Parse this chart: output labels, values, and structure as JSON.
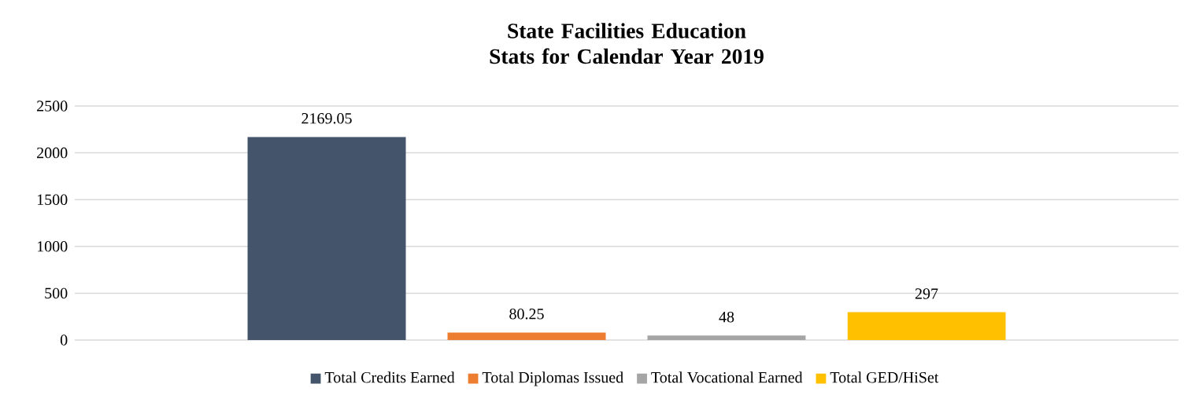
{
  "chart_data": {
    "type": "bar",
    "title": "State Facilities Education Stats for Calendar Year 2019",
    "categories": [
      null
    ],
    "series": [
      {
        "name": "Total Credits Earned",
        "color": "#44546a",
        "values": [
          2169.05
        ]
      },
      {
        "name": "Total Diplomas Issued",
        "color": "#ed7d31",
        "values": [
          80.25
        ]
      },
      {
        "name": "Total Vocational Earned",
        "color": "#a5a5a5",
        "values": [
          48
        ]
      },
      {
        "name": "Total GED/HiSet",
        "color": "#ffc000",
        "values": [
          297
        ]
      }
    ],
    "ylim": [
      0,
      2500
    ],
    "yticks": [
      0,
      500,
      1000,
      1500,
      2000,
      2500
    ],
    "grid": "y",
    "legend": "bottom",
    "data_labels": true
  }
}
